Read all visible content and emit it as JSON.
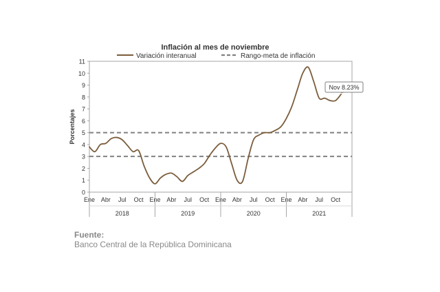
{
  "chart_data": {
    "type": "line",
    "title": "Inflación al mes de noviembre",
    "ylabel": "Porcentajes",
    "ylim": [
      0,
      11
    ],
    "yticks": [
      0,
      1,
      2,
      3,
      4,
      5,
      6,
      7,
      8,
      9,
      10,
      11
    ],
    "month_ticks": [
      "Ene",
      "Abr",
      "Jul",
      "Oct"
    ],
    "years": [
      "2018",
      "2019",
      "2020",
      "2021"
    ],
    "grid": false,
    "legend_position": "top",
    "series": [
      {
        "name": "Variación interanual",
        "color": "#7a5c3b",
        "x": [
          "2018-01",
          "2018-02",
          "2018-03",
          "2018-04",
          "2018-05",
          "2018-06",
          "2018-07",
          "2018-08",
          "2018-09",
          "2018-10",
          "2018-11",
          "2018-12",
          "2019-01",
          "2019-02",
          "2019-03",
          "2019-04",
          "2019-05",
          "2019-06",
          "2019-07",
          "2019-08",
          "2019-09",
          "2019-10",
          "2019-11",
          "2019-12",
          "2020-01",
          "2020-02",
          "2020-03",
          "2020-04",
          "2020-05",
          "2020-06",
          "2020-07",
          "2020-08",
          "2020-09",
          "2020-10",
          "2020-11",
          "2020-12",
          "2021-01",
          "2021-02",
          "2021-03",
          "2021-04",
          "2021-05",
          "2021-06",
          "2021-07",
          "2021-08",
          "2021-09",
          "2021-10",
          "2021-11"
        ],
        "values": [
          3.8,
          3.4,
          4.0,
          4.1,
          4.5,
          4.6,
          4.4,
          3.9,
          3.4,
          3.5,
          2.2,
          1.2,
          0.7,
          1.2,
          1.5,
          1.6,
          1.3,
          0.9,
          1.4,
          1.7,
          2.0,
          2.4,
          3.1,
          3.7,
          4.1,
          3.8,
          2.4,
          1.0,
          0.9,
          2.8,
          4.4,
          4.8,
          5.0,
          5.0,
          5.2,
          5.5,
          6.2,
          7.2,
          8.6,
          10.0,
          10.5,
          9.3,
          7.9,
          7.9,
          7.7,
          7.7,
          8.23
        ],
        "callout": "Nov 8.23%"
      },
      {
        "name": "Rango-meta de inflación",
        "color": "#808080",
        "dashed": true,
        "values": [
          3,
          5
        ]
      }
    ]
  },
  "footer": {
    "source_label": "Fuente:",
    "source_text": "Banco Central de la República Dominicana"
  }
}
